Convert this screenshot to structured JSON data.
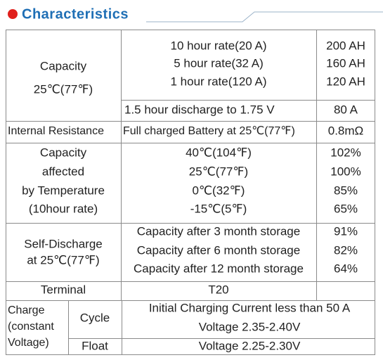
{
  "header": {
    "title": "Characteristics"
  },
  "table": {
    "capacity": {
      "label": [
        "Capacity",
        "25℃(77℉)"
      ],
      "conditions": [
        "10 hour rate(20 A)",
        "5 hour rate(32 A)",
        "1 hour rate(120 A)"
      ],
      "values": [
        "200 AH",
        "160 AH",
        "120 AH"
      ],
      "discharge_condition": "1.5 hour discharge to 1.75 V",
      "discharge_value": "80 A"
    },
    "internal_resistance": {
      "label": "Internal Resistance",
      "condition": "Full charged Battery at 25℃(77℉)",
      "value": "0.8mΩ"
    },
    "temperature": {
      "label": [
        "Capacity",
        "affected",
        "by Temperature",
        "(10hour rate)"
      ],
      "conditions": [
        "40℃(104℉)",
        "25℃(77℉)",
        "0℃(32℉)",
        "-15℃(5℉)"
      ],
      "values": [
        "102%",
        "100%",
        "85%",
        "65%"
      ]
    },
    "self_discharge": {
      "label": [
        "Self-Discharge",
        "at 25℃(77℉)"
      ],
      "conditions": [
        "Capacity after 3 month storage",
        "Capacity after 6 month storage",
        "Capacity after 12 month storage"
      ],
      "values": [
        "91%",
        "82%",
        "64%"
      ]
    },
    "terminal": {
      "label": "Terminal",
      "value": "T20"
    },
    "charge": {
      "label": [
        "Charge",
        "(constant",
        "Voltage)"
      ],
      "cycle": {
        "label": "Cycle",
        "lines": [
          "Initial Charging Current less than 50 A",
          "Voltage 2.35-2.40V"
        ]
      },
      "float": {
        "label": "Float",
        "value": "Voltage 2.25-2.30V"
      }
    }
  }
}
